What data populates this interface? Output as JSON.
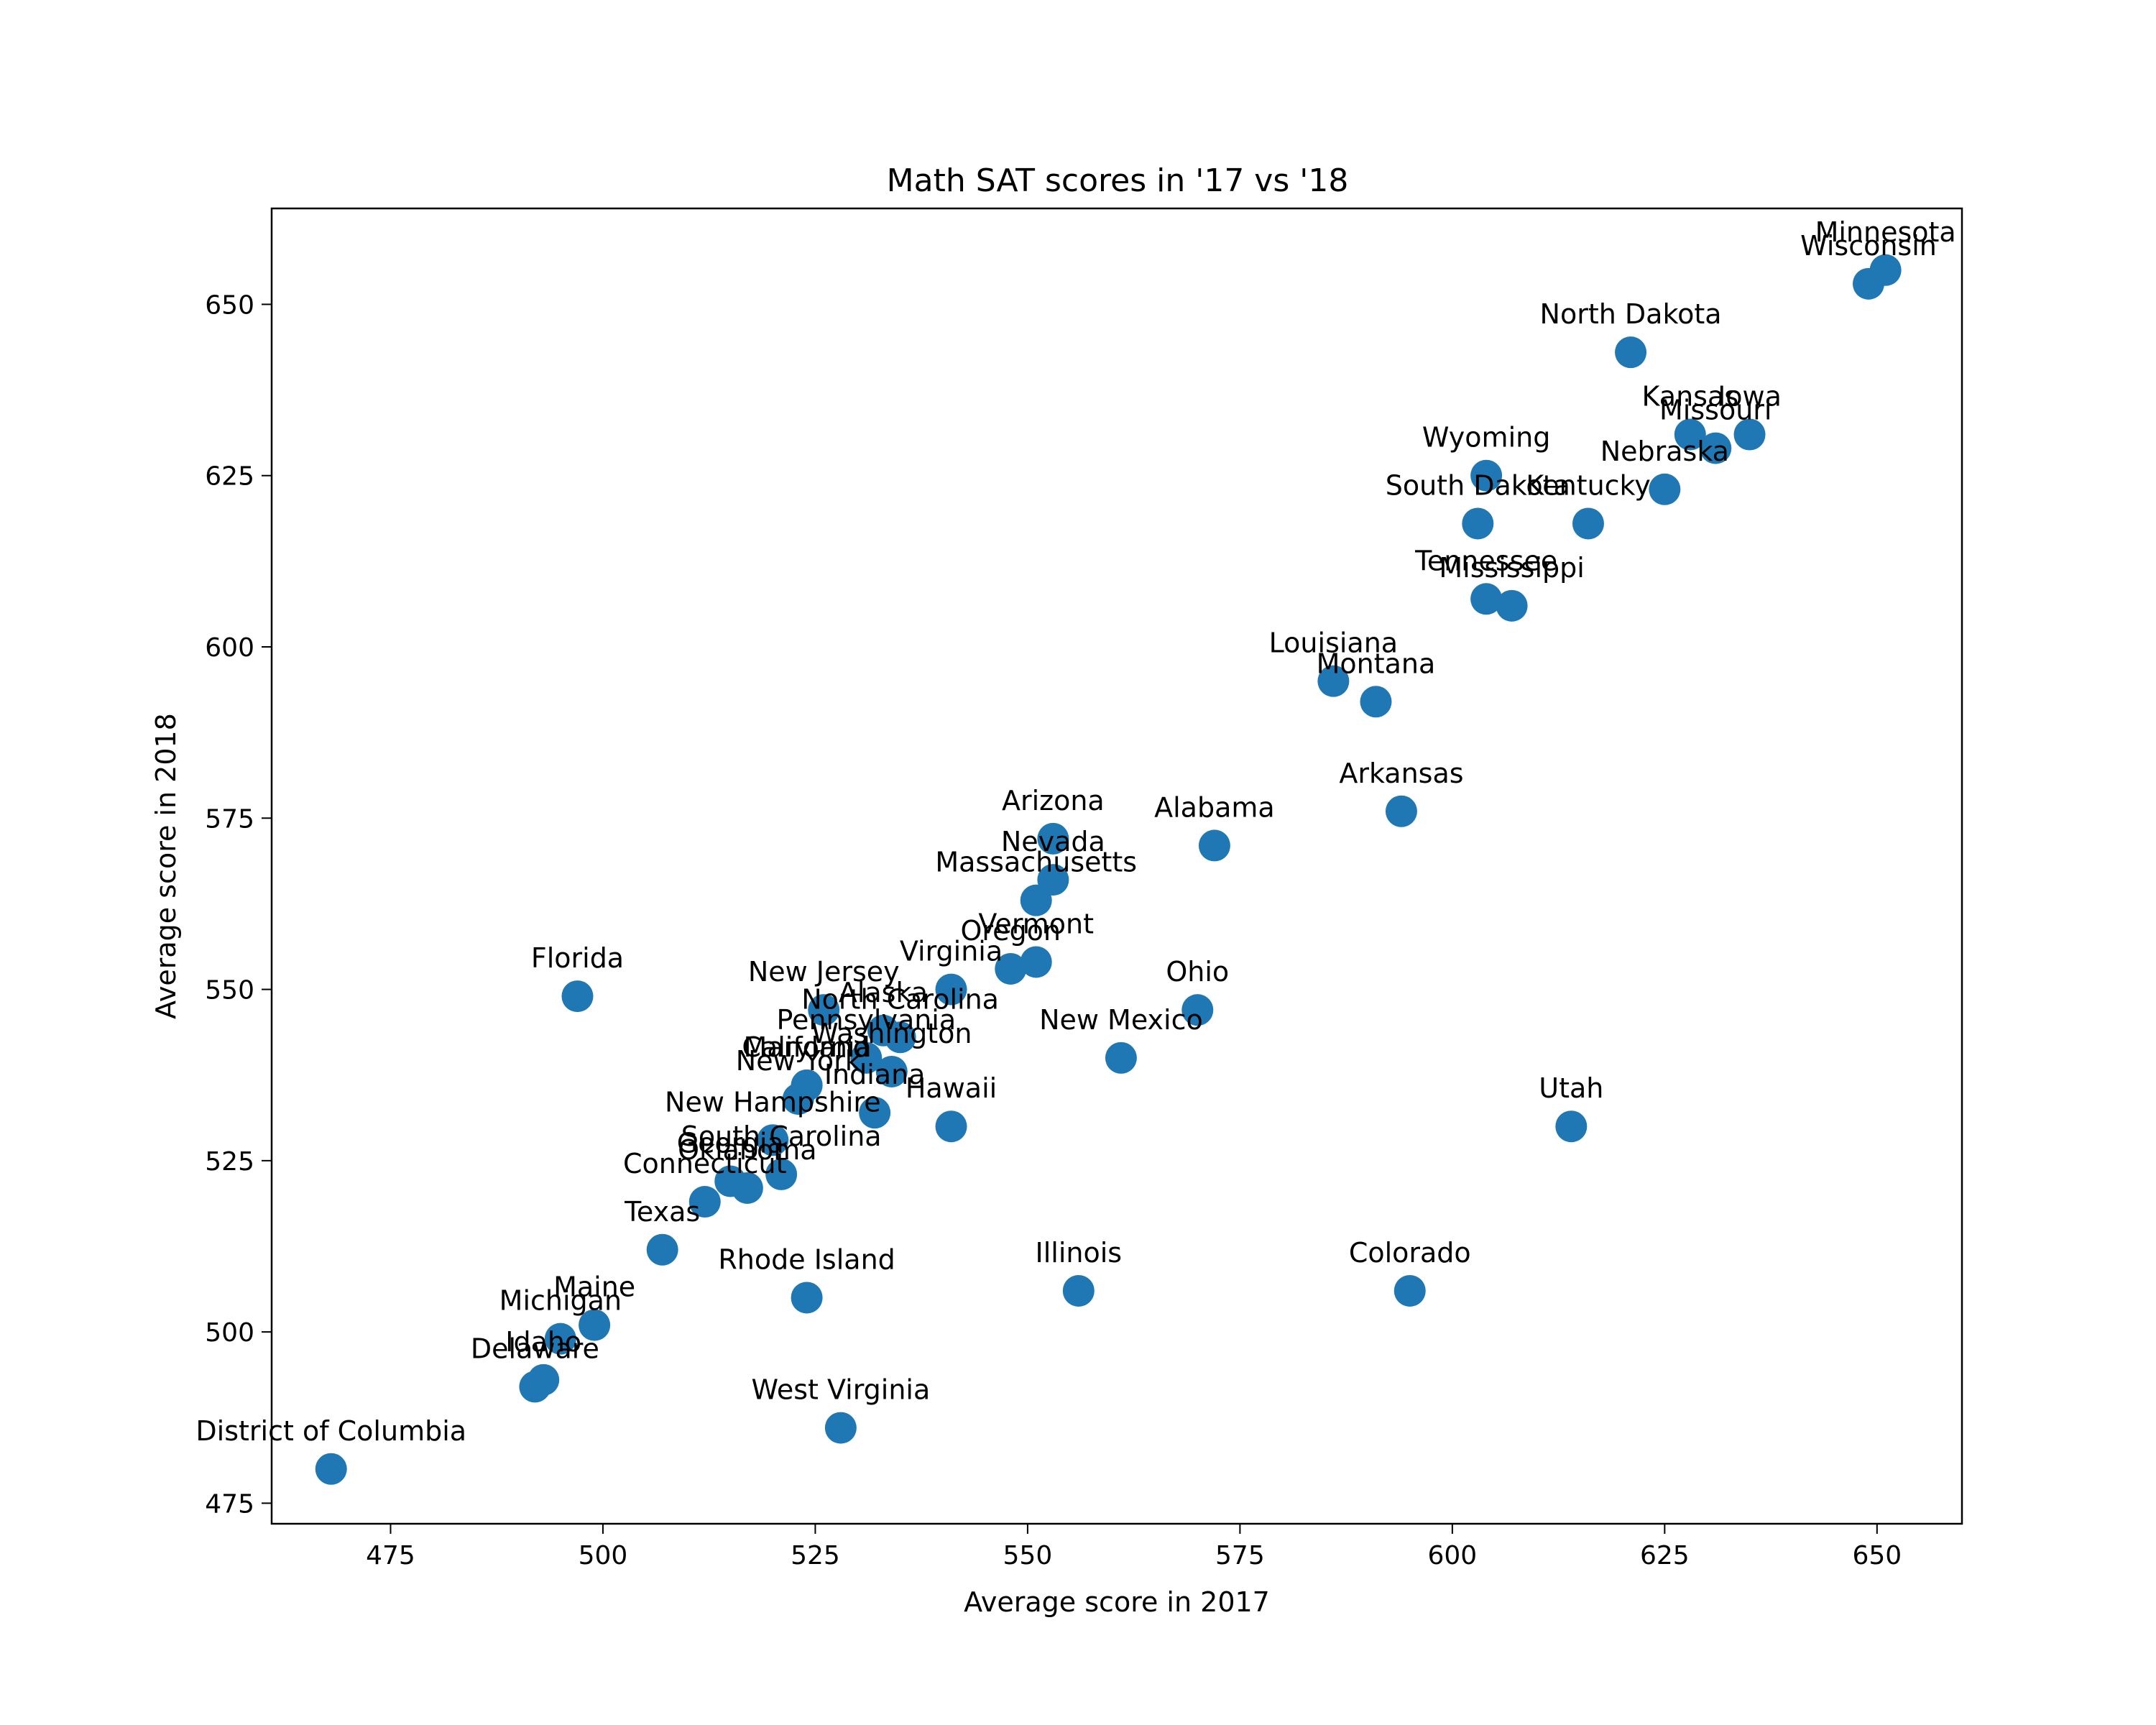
{
  "chart_data": {
    "type": "scatter",
    "title": "Math SAT scores in '17 vs '18",
    "xlabel": "Average score in 2017",
    "ylabel": "Average score in 2018",
    "xlim": [
      461,
      660
    ],
    "ylim": [
      472,
      664
    ],
    "xticks": [
      475,
      500,
      525,
      550,
      575,
      600,
      625,
      650
    ],
    "yticks": [
      475,
      500,
      525,
      550,
      575,
      600,
      625,
      650
    ],
    "grid": false,
    "color": "#1f77b4",
    "points": [
      {
        "label": "Minnesota",
        "x": 651,
        "y": 655
      },
      {
        "label": "Wisconsin",
        "x": 649,
        "y": 653
      },
      {
        "label": "North Dakota",
        "x": 621,
        "y": 643
      },
      {
        "label": "Kansas",
        "x": 628,
        "y": 631
      },
      {
        "label": "Iowa",
        "x": 635,
        "y": 631
      },
      {
        "label": "Missouri",
        "x": 631,
        "y": 629
      },
      {
        "label": "Nebraska",
        "x": 625,
        "y": 623
      },
      {
        "label": "Wyoming",
        "x": 604,
        "y": 625
      },
      {
        "label": "South Dakota",
        "x": 603,
        "y": 618
      },
      {
        "label": "Kentucky",
        "x": 616,
        "y": 618
      },
      {
        "label": "Tennessee",
        "x": 604,
        "y": 607
      },
      {
        "label": "Mississippi",
        "x": 607,
        "y": 606
      },
      {
        "label": "Louisiana",
        "x": 586,
        "y": 595
      },
      {
        "label": "Montana",
        "x": 591,
        "y": 592
      },
      {
        "label": "Arkansas",
        "x": 594,
        "y": 576
      },
      {
        "label": "Arizona",
        "x": 553,
        "y": 572
      },
      {
        "label": "Alabama",
        "x": 572,
        "y": 571
      },
      {
        "label": "Nevada",
        "x": 553,
        "y": 566
      },
      {
        "label": "Massachusetts",
        "x": 551,
        "y": 563
      },
      {
        "label": "Vermont",
        "x": 551,
        "y": 554
      },
      {
        "label": "Oregon",
        "x": 548,
        "y": 553
      },
      {
        "label": "Virginia",
        "x": 541,
        "y": 550
      },
      {
        "label": "Florida",
        "x": 497,
        "y": 549
      },
      {
        "label": "Ohio",
        "x": 570,
        "y": 547
      },
      {
        "label": "New Jersey",
        "x": 526,
        "y": 547
      },
      {
        "label": "Alaska",
        "x": 533,
        "y": 544
      },
      {
        "label": "North Carolina",
        "x": 535,
        "y": 543
      },
      {
        "label": "New Mexico",
        "x": 561,
        "y": 540
      },
      {
        "label": "Pennsylvania",
        "x": 531,
        "y": 540
      },
      {
        "label": "Washington",
        "x": 534,
        "y": 538
      },
      {
        "label": "California",
        "x": 524,
        "y": 536
      },
      {
        "label": "Maryland",
        "x": 524,
        "y": 536
      },
      {
        "label": "New York",
        "x": 523,
        "y": 534
      },
      {
        "label": "Indiana",
        "x": 532,
        "y": 532
      },
      {
        "label": "Hawaii",
        "x": 541,
        "y": 530
      },
      {
        "label": "Utah",
        "x": 614,
        "y": 530
      },
      {
        "label": "New Hampshire",
        "x": 520,
        "y": 528
      },
      {
        "label": "South Carolina",
        "x": 521,
        "y": 523
      },
      {
        "label": "Georgia",
        "x": 515,
        "y": 522
      },
      {
        "label": "Oklahoma",
        "x": 517,
        "y": 521
      },
      {
        "label": "Connecticut",
        "x": 512,
        "y": 519
      },
      {
        "label": "Texas",
        "x": 507,
        "y": 512
      },
      {
        "label": "Rhode Island",
        "x": 524,
        "y": 505
      },
      {
        "label": "Illinois",
        "x": 556,
        "y": 506
      },
      {
        "label": "Colorado",
        "x": 595,
        "y": 506
      },
      {
        "label": "Maine",
        "x": 499,
        "y": 501
      },
      {
        "label": "Michigan",
        "x": 495,
        "y": 499
      },
      {
        "label": "Idaho",
        "x": 493,
        "y": 493
      },
      {
        "label": "Delaware",
        "x": 492,
        "y": 492
      },
      {
        "label": "West Virginia",
        "x": 528,
        "y": 486
      },
      {
        "label": "District of Columbia",
        "x": 468,
        "y": 480
      }
    ]
  }
}
